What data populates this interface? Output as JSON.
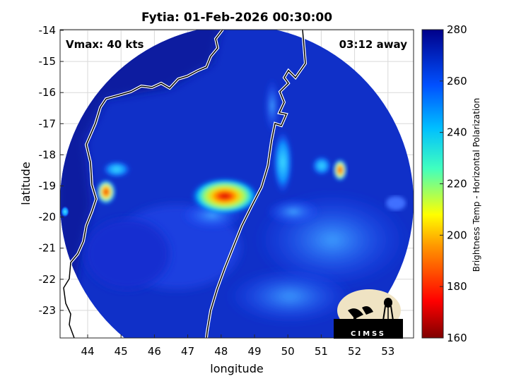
{
  "figure": {
    "title": "Fytia: 01-Feb-2026 00:30:00",
    "xlabel": "longitude",
    "ylabel": "latitude",
    "x_ticks": [
      "44",
      "45",
      "46",
      "47",
      "48",
      "49",
      "50",
      "51",
      "52",
      "53"
    ],
    "y_ticks": [
      "-14",
      "-15",
      "-16",
      "-17",
      "-18",
      "-19",
      "-20",
      "-21",
      "-22",
      "-23"
    ],
    "vmax_label": "Vmax: 40 kts",
    "time_away_label": "03:12 away",
    "colorbar_label": "Brightness Temp - Horizontal Polarization",
    "colorbar_ticks": [
      "280",
      "260",
      "240",
      "220",
      "200",
      "180",
      "160"
    ],
    "logo_text": "CIMSS"
  },
  "colors": {
    "background_swath": "#0a1fa8",
    "cold_core": "#d40000",
    "coastline": "#ffffff"
  },
  "icons": [
    "cimss-logo-icon"
  ]
}
